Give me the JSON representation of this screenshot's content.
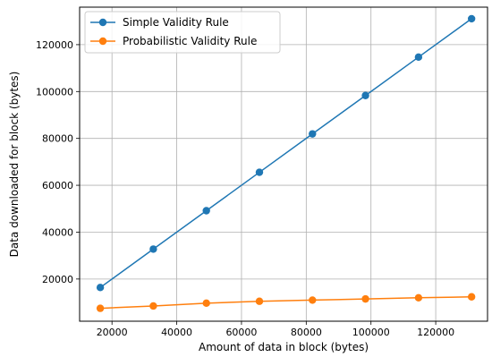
{
  "chart_data": {
    "type": "line",
    "title": "",
    "xlabel": "Amount of data in block (bytes)",
    "ylabel": "Data downloaded for block (bytes)",
    "xlim": [
      10000,
      136000
    ],
    "ylim": [
      2000,
      136000
    ],
    "x_ticks": [
      20000,
      40000,
      60000,
      80000,
      100000,
      120000
    ],
    "y_ticks": [
      20000,
      40000,
      60000,
      80000,
      100000,
      120000
    ],
    "grid": true,
    "legend_position": "top-left",
    "x": [
      16384,
      32768,
      49152,
      65536,
      81920,
      98304,
      114688,
      131072
    ],
    "series": [
      {
        "name": "Simple Validity Rule",
        "color": "#1f77b4",
        "values": [
          16384,
          32768,
          49152,
          65536,
          81920,
          98304,
          114688,
          131072
        ]
      },
      {
        "name": "Probabilistic Validity Rule",
        "color": "#ff7f0e",
        "values": [
          7500,
          8500,
          9700,
          10500,
          11000,
          11500,
          12000,
          12400
        ]
      }
    ]
  }
}
